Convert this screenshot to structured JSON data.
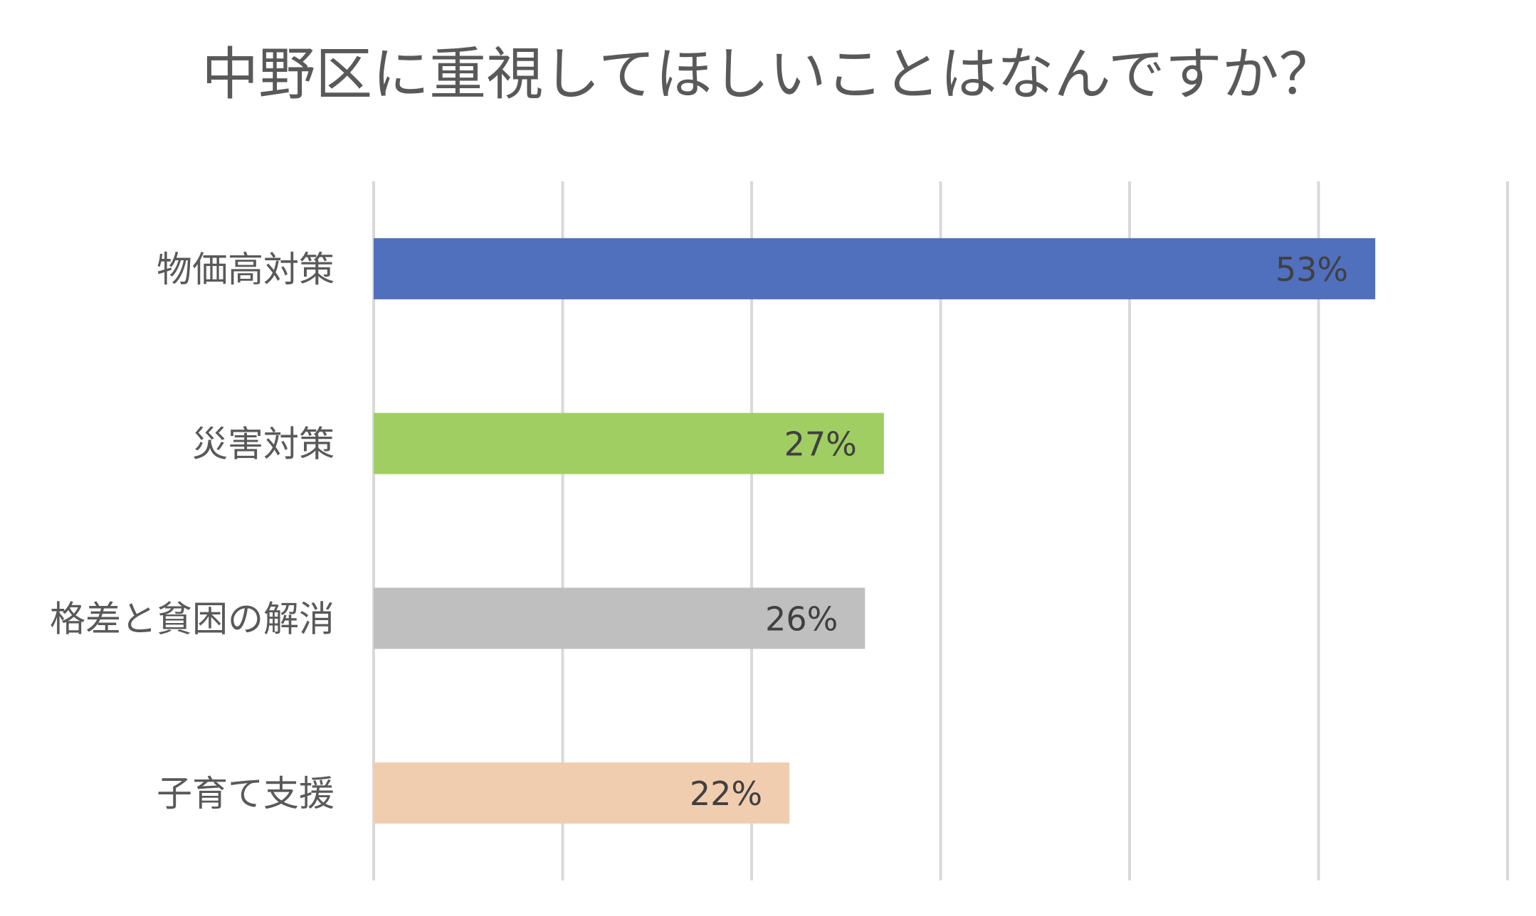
{
  "chart_data": {
    "type": "bar",
    "orientation": "horizontal",
    "title": "中野区に重視してほしいことはなんですか？",
    "categories": [
      "物価高対策",
      "災害対策",
      "格差と貧困の解消",
      "子育て支援"
    ],
    "values": [
      53,
      27,
      26,
      22
    ],
    "value_labels": [
      "53%",
      "27%",
      "26%",
      "22%"
    ],
    "colors": [
      "#5070BE",
      "#A0CE62",
      "#BFBFBF",
      "#F1CDB0"
    ],
    "xlim": [
      0,
      60
    ],
    "grid": true,
    "legend": "none"
  }
}
